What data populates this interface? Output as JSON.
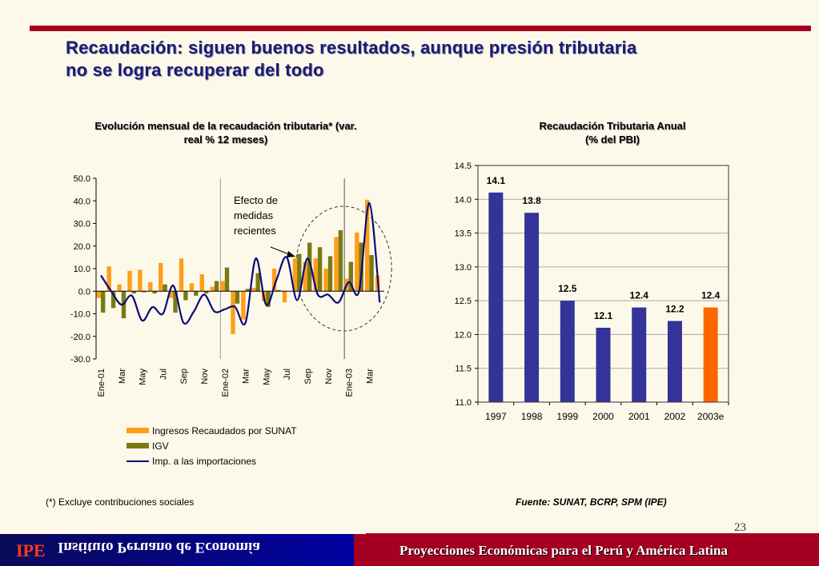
{
  "slide": {
    "title_line1": "Recaudación: siguen buenos resultados, aunque presión tributaria",
    "title_line2": "no se logra recuperar del todo",
    "footnote": "(*) Excluye contribuciones sociales",
    "source": "Fuente: SUNAT, BCRP, SPM (IPE)",
    "page_number": "23",
    "footer_logo": "IPE",
    "footer_institute": "Instituto Peruano de Economía",
    "footer_tagline": "Proyecciones Económicas para el Perú y América Latina",
    "colors": {
      "accent_red": "#a50021",
      "footer_blue": "#0000a0"
    }
  },
  "chart_data": [
    {
      "type": "bar",
      "title_line1": "Evolución mensual de la recaudación tributaria*  (var.",
      "title_line2": "real % 12 meses)",
      "xlabel": "",
      "ylabel": "",
      "ylim": [
        -30,
        50
      ],
      "yticks": [
        "50.0",
        "40.0",
        "30.0",
        "20.0",
        "10.0",
        "0.0",
        "-10.0",
        "-20.0",
        "-30.0"
      ],
      "ytick_values": [
        50,
        40,
        30,
        20,
        10,
        0,
        -10,
        -20,
        -30
      ],
      "x": [
        "Ene-01",
        "Feb-01",
        "Mar-01",
        "Abr-01",
        "May-01",
        "Jun-01",
        "Jul-01",
        "Ago-01",
        "Sep-01",
        "Oct-01",
        "Nov-01",
        "Dic-01",
        "Ene-02",
        "Feb-02",
        "Mar-02",
        "Abr-02",
        "May-02",
        "Jun-02",
        "Jul-02",
        "Ago-02",
        "Sep-02",
        "Oct-02",
        "Nov-02",
        "Dic-02",
        "Ene-03",
        "Feb-03",
        "Mar-03",
        "Abr-03"
      ],
      "xtick_labels": [
        {
          "index": 0,
          "label": "Ene-01"
        },
        {
          "index": 2,
          "label": "Mar"
        },
        {
          "index": 4,
          "label": "May"
        },
        {
          "index": 6,
          "label": "Jul"
        },
        {
          "index": 8,
          "label": "Sep"
        },
        {
          "index": 10,
          "label": "Nov"
        },
        {
          "index": 12,
          "label": "Ene-02"
        },
        {
          "index": 14,
          "label": "Mar"
        },
        {
          "index": 16,
          "label": "May"
        },
        {
          "index": 18,
          "label": "Jul"
        },
        {
          "index": 20,
          "label": "Sep"
        },
        {
          "index": 22,
          "label": "Nov"
        },
        {
          "index": 24,
          "label": "Ene-03"
        },
        {
          "index": 26,
          "label": "Mar"
        }
      ],
      "year_separators": [
        12,
        24
      ],
      "series": [
        {
          "name": "Ingresos Recaudados por SUNAT",
          "kind": "bar",
          "color": "#ff9e1a",
          "values": [
            -3,
            11,
            3,
            9,
            9.5,
            4,
            12.5,
            -3,
            14.5,
            3.5,
            7.5,
            2,
            4.5,
            -19,
            -12.5,
            1.5,
            -4.5,
            10,
            -5,
            14.5,
            13,
            14.5,
            10,
            24,
            5.5,
            26,
            40.5,
            7
          ]
        },
        {
          "name": "IGV",
          "kind": "bar",
          "color": "#7a7a14",
          "values": [
            -9.5,
            -7.5,
            -12,
            -1,
            -0.5,
            -1,
            3,
            -9.5,
            -4,
            -2,
            -1,
            4.5,
            10.5,
            -5.5,
            1,
            8,
            -7,
            0.5,
            0,
            16.5,
            21.5,
            19.5,
            15.5,
            27,
            13,
            21.5,
            16,
            0
          ]
        },
        {
          "name": "Imp. a las importaciones",
          "kind": "line",
          "color": "#0a0a78",
          "values": [
            7,
            0,
            -6,
            -2,
            -13,
            -7,
            -10,
            2.5,
            -14,
            -9,
            -1.5,
            -9,
            -8,
            -7,
            -14,
            14.5,
            -6,
            5,
            15,
            -4,
            14.5,
            -1.5,
            -1.5,
            -5,
            4,
            0,
            39,
            -5
          ]
        }
      ],
      "annotation": {
        "text_lines": [
          "Efecto de",
          "medidas",
          "recientes"
        ],
        "points_to": "Ago-02",
        "highlight": "dashed ellipse around Ago-02 to Abr-03"
      },
      "legend": {
        "placement": "bottom",
        "entries": [
          "Ingresos Recaudados por SUNAT",
          "IGV",
          "Imp. a las importaciones"
        ]
      },
      "grid": false
    },
    {
      "type": "bar",
      "title_line1": "Recaudación Tributaria Anual",
      "title_line2": "(% del PBI)",
      "xlabel": "",
      "ylabel": "",
      "ylim": [
        11.0,
        14.5
      ],
      "yticks": [
        "14.5",
        "14.0",
        "13.5",
        "13.0",
        "12.5",
        "12.0",
        "11.5",
        "11.0"
      ],
      "ytick_values": [
        14.5,
        14.0,
        13.5,
        13.0,
        12.5,
        12.0,
        11.5,
        11.0
      ],
      "categories": [
        "1997",
        "1998",
        "1999",
        "2000",
        "2001",
        "2002",
        "2003e"
      ],
      "values": [
        14.1,
        13.8,
        12.5,
        12.1,
        12.4,
        12.2,
        12.4
      ],
      "data_labels": [
        "14.1",
        "13.8",
        "12.5",
        "12.1",
        "12.4",
        "12.2",
        "12.4"
      ],
      "colors": [
        "#333399",
        "#333399",
        "#333399",
        "#333399",
        "#333399",
        "#333399",
        "#ff6600"
      ],
      "grid": true
    }
  ]
}
